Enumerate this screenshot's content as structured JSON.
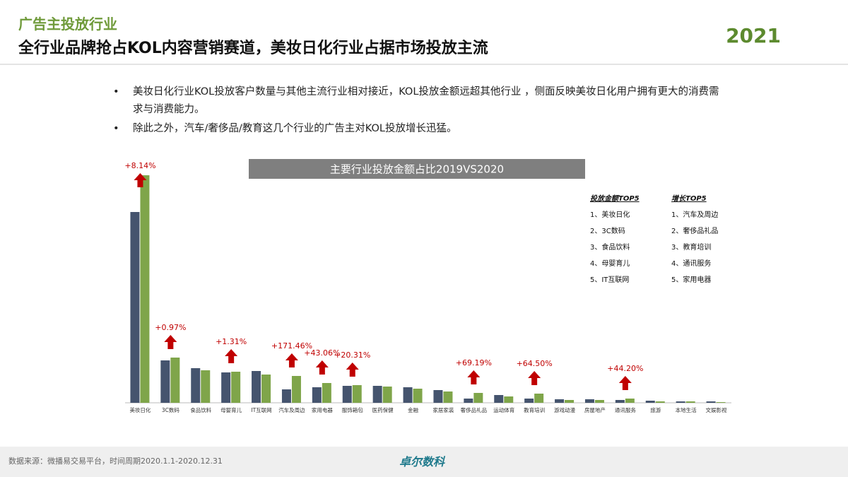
{
  "header": {
    "subtitle": "广告主投放行业",
    "title": "全行业品牌抢占KOL内容营销赛道，美妆日化行业占据市场投放主流",
    "year": "2021"
  },
  "bullets": [
    "美妆日化行业KOL投放客户数量与其他主流行业相对接近，KOL投放金额远超其他行业 ，侧面反映美妆日化用户拥有更大的消费需求与消费能力。",
    "除此之外，汽车/奢侈品/教育这几个行业的广告主对KOL投放增长迅猛。"
  ],
  "chart_data": {
    "type": "bar",
    "title": "主要行业投放金额占比2019VS2020",
    "categories": [
      "美妆日化",
      "3C数码",
      "食品饮料",
      "母婴育儿",
      "IT互联网",
      "汽车及周边",
      "家用电器",
      "服饰箱包",
      "医药保健",
      "金融",
      "家居家装",
      "奢侈品礼品",
      "运动体育",
      "教育培训",
      "游戏动漫",
      "房屋地产",
      "通讯服务",
      "旅游",
      "本地生活",
      "文娱影视"
    ],
    "series": [
      {
        "color": "#45546e",
        "values": [
          27.0,
          6.0,
          4.9,
          4.3,
          4.5,
          1.9,
          2.2,
          2.4,
          2.4,
          2.2,
          1.8,
          0.6,
          1.1,
          0.6,
          0.5,
          0.5,
          0.4,
          0.3,
          0.2,
          0.2
        ]
      },
      {
        "color": "#7fa54a",
        "values": [
          32.2,
          6.4,
          4.6,
          4.4,
          4.0,
          3.8,
          2.8,
          2.5,
          2.3,
          2.0,
          1.6,
          1.4,
          0.9,
          1.3,
          0.4,
          0.4,
          0.6,
          0.2,
          0.2,
          0.1
        ]
      }
    ],
    "ylim": [
      0,
      35
    ],
    "annotations": [
      {
        "category": "美妆日化",
        "label": "+8.14%"
      },
      {
        "category": "3C数码",
        "label": "+0.97%"
      },
      {
        "category": "母婴育儿",
        "label": "+1.31%"
      },
      {
        "category": "汽车及周边",
        "label": "+171.46%"
      },
      {
        "category": "家用电器",
        "label": "+43.06%"
      },
      {
        "category": "服饰箱包",
        "label": "+20.31%"
      },
      {
        "category": "奢侈品礼品",
        "label": "+69.19%"
      },
      {
        "category": "教育培训",
        "label": "+64.50%"
      },
      {
        "category": "通讯服务",
        "label": "+44.20%"
      }
    ],
    "top_lists": [
      {
        "title": "投放金额TOP5",
        "items": [
          "1、美妆日化",
          "2、3C数码",
          "3、食品饮料",
          "4、母婴育儿",
          "5、IT互联网"
        ]
      },
      {
        "title": "增长TOP5",
        "items": [
          "1、汽车及周边",
          "2、奢侈品礼品",
          "3、教育培训",
          "4、通讯服务",
          "5、家用电器"
        ]
      }
    ]
  },
  "footer": {
    "source": "数据来源：微播易交易平台，时间周期2020.1.1-2020.12.31",
    "brand": "卓尔数科"
  }
}
